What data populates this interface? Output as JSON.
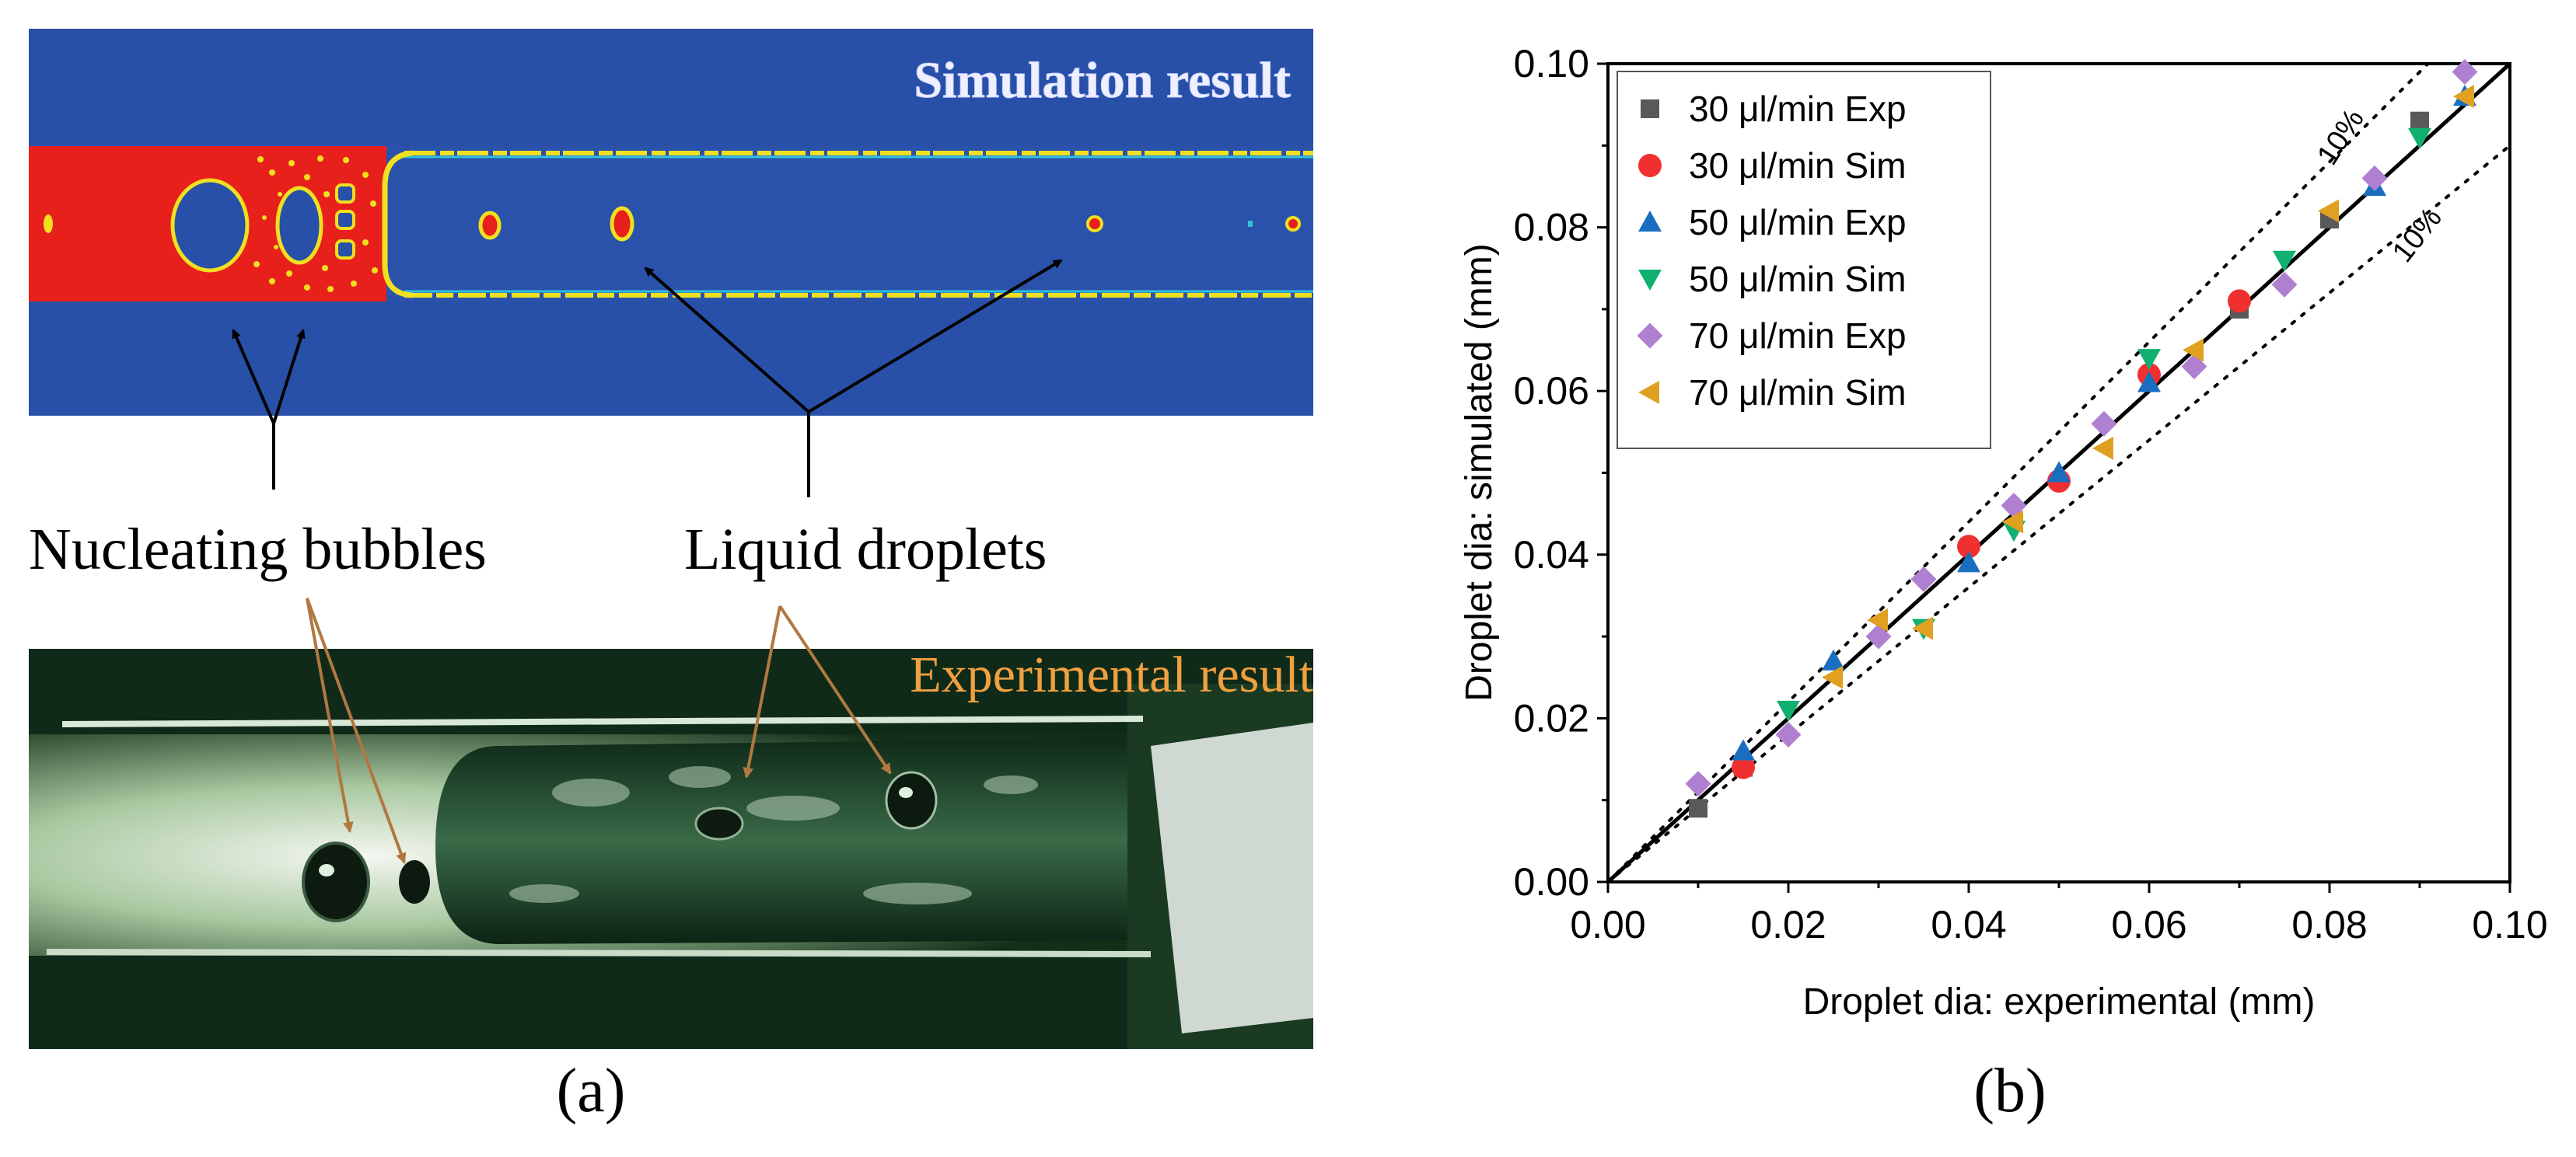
{
  "panel_a": {
    "sim_title": "Simulation result",
    "exp_title": "Experimental result",
    "label_nucleating": "Nucleating bubbles",
    "label_droplets": "Liquid droplets",
    "caption": "(a)"
  },
  "panel_b": {
    "caption": "(b)"
  },
  "colors": {
    "sim_background": "#2850a8",
    "sim_vapor": "#e8201c",
    "sim_interface": "#f0e020",
    "exp_title": "#f0a040",
    "arrow_brown": "#b07840",
    "exp_series": "#595959",
    "sim30": "#f03030",
    "exp50": "#1a6ec0",
    "sim50": "#10b070",
    "exp70": "#b080d0",
    "sim70": "#e0a020"
  },
  "chart_data": {
    "type": "scatter",
    "title": "",
    "xlabel": "Droplet dia: experimental (mm)",
    "ylabel": "Droplet dia: simulated (mm)",
    "xlim": [
      0,
      0.1
    ],
    "ylim": [
      0,
      0.1
    ],
    "xticks": [
      "0.00",
      "0.02",
      "0.04",
      "0.06",
      "0.08",
      "0.10"
    ],
    "yticks": [
      "0.00",
      "0.02",
      "0.04",
      "0.06",
      "0.08",
      "0.10"
    ],
    "legend_position": "top-left",
    "reference_lines": [
      {
        "type": "y=x",
        "style": "solid"
      },
      {
        "type": "y=1.1x",
        "style": "dotted",
        "label": "10%"
      },
      {
        "type": "y=0.9x",
        "style": "dotted",
        "label": "10%"
      }
    ],
    "series": [
      {
        "name": "30 μl/min Exp",
        "marker": "square",
        "color": "#595959",
        "points": [
          [
            0.01,
            0.009
          ],
          [
            0.015,
            0.014
          ],
          [
            0.07,
            0.07
          ],
          [
            0.08,
            0.081
          ],
          [
            0.09,
            0.093
          ]
        ]
      },
      {
        "name": "30 μl/min Sim",
        "marker": "circle",
        "color": "#f03030",
        "points": [
          [
            0.015,
            0.014
          ],
          [
            0.04,
            0.041
          ],
          [
            0.05,
            0.049
          ],
          [
            0.06,
            0.062
          ],
          [
            0.07,
            0.071
          ]
        ]
      },
      {
        "name": "50 μl/min Exp",
        "marker": "triangle-up",
        "color": "#1a6ec0",
        "points": [
          [
            0.015,
            0.016
          ],
          [
            0.025,
            0.027
          ],
          [
            0.04,
            0.039
          ],
          [
            0.05,
            0.05
          ],
          [
            0.06,
            0.061
          ],
          [
            0.085,
            0.085
          ],
          [
            0.095,
            0.096
          ]
        ]
      },
      {
        "name": "50 μl/min Sim",
        "marker": "triangle-down",
        "color": "#10b070",
        "points": [
          [
            0.02,
            0.021
          ],
          [
            0.035,
            0.031
          ],
          [
            0.045,
            0.043
          ],
          [
            0.06,
            0.064
          ],
          [
            0.075,
            0.076
          ],
          [
            0.09,
            0.091
          ]
        ]
      },
      {
        "name": "70 μl/min Exp",
        "marker": "diamond",
        "color": "#b080d0",
        "points": [
          [
            0.01,
            0.012
          ],
          [
            0.02,
            0.018
          ],
          [
            0.03,
            0.03
          ],
          [
            0.035,
            0.037
          ],
          [
            0.045,
            0.046
          ],
          [
            0.055,
            0.056
          ],
          [
            0.065,
            0.063
          ],
          [
            0.075,
            0.073
          ],
          [
            0.085,
            0.086
          ],
          [
            0.095,
            0.099
          ]
        ]
      },
      {
        "name": "70 μl/min Sim",
        "marker": "triangle-left",
        "color": "#e0a020",
        "points": [
          [
            0.025,
            0.025
          ],
          [
            0.03,
            0.032
          ],
          [
            0.035,
            0.031
          ],
          [
            0.045,
            0.044
          ],
          [
            0.055,
            0.053
          ],
          [
            0.065,
            0.065
          ],
          [
            0.08,
            0.082
          ],
          [
            0.095,
            0.096
          ]
        ]
      }
    ]
  }
}
